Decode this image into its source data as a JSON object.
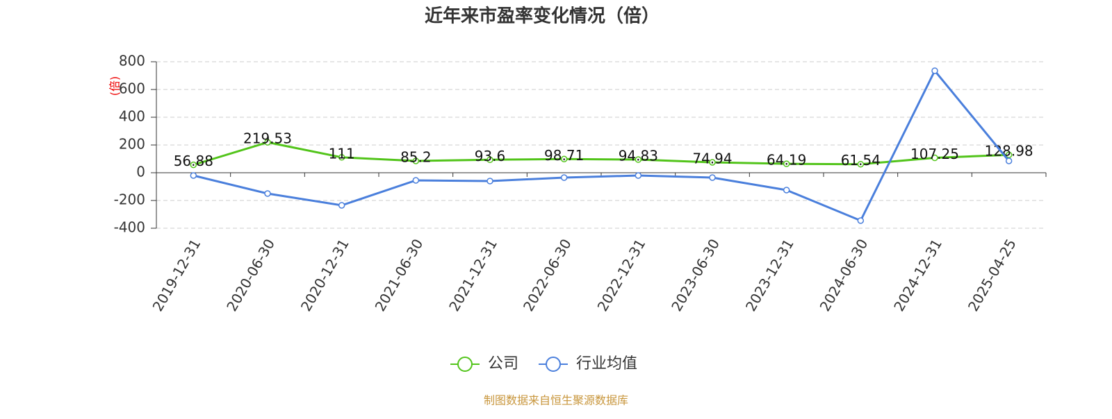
{
  "chart_data": {
    "type": "line",
    "title": "近年来市盈率变化情况（倍）",
    "y_label": "(倍)",
    "categories": [
      "2019-12-31",
      "2020-06-30",
      "2020-12-31",
      "2021-06-30",
      "2021-12-31",
      "2022-06-30",
      "2022-12-31",
      "2023-06-30",
      "2023-12-31",
      "2024-06-30",
      "2024-12-31",
      "2025-04-25"
    ],
    "series": [
      {
        "name": "公司",
        "color": "#52c41a",
        "values": [
          56.88,
          219.53,
          111,
          85.2,
          93.6,
          98.71,
          94.83,
          74.94,
          64.19,
          61.54,
          107.25,
          128.98
        ],
        "show_labels": true
      },
      {
        "name": "行业均值",
        "color": "#4a7fdc",
        "values": [
          -20,
          -150,
          -235,
          -55,
          -60,
          -35,
          -20,
          -35,
          -125,
          -345,
          735,
          85
        ],
        "show_labels": false
      }
    ],
    "ylim": [
      -400,
      800
    ],
    "yticks": [
      -400,
      -200,
      0,
      200,
      400,
      600,
      800
    ],
    "grid": true,
    "source": "制图数据来自恒生聚源数据库"
  }
}
